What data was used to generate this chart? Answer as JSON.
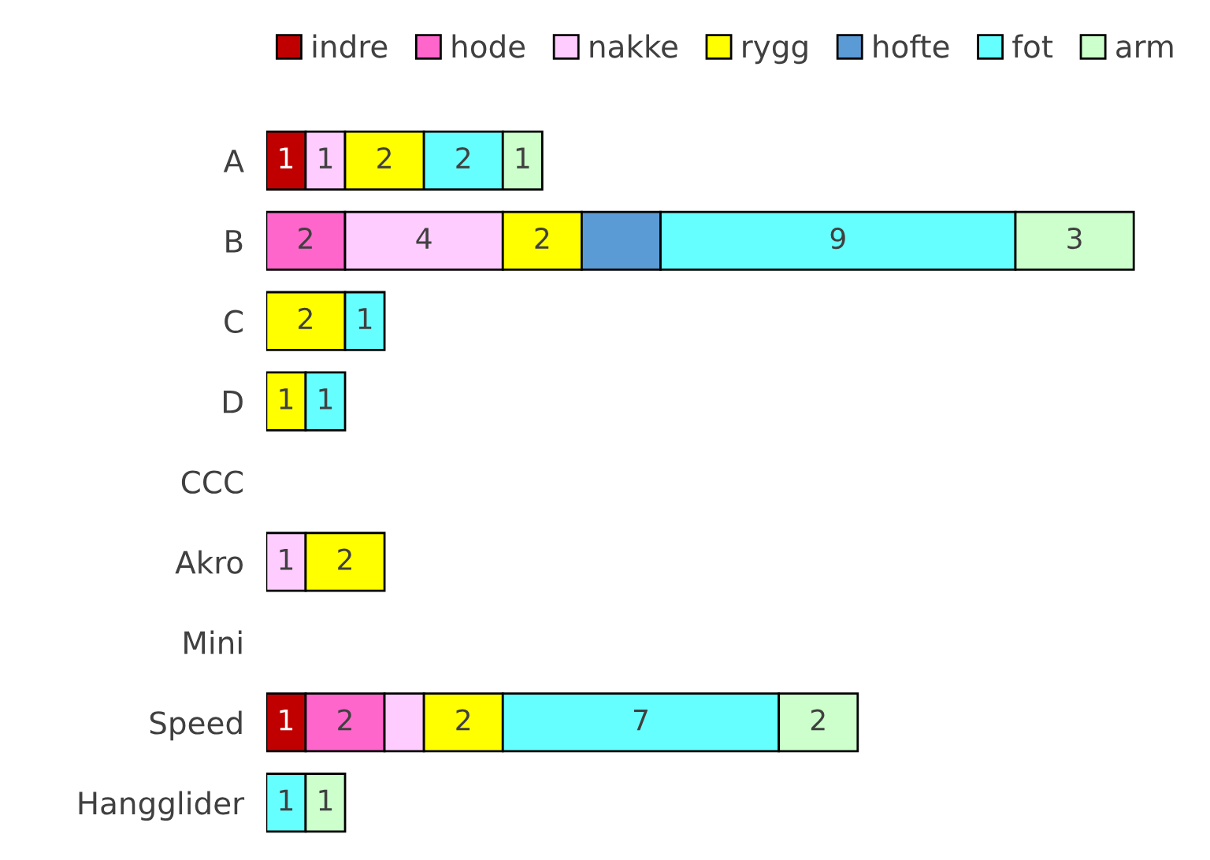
{
  "chart_data": {
    "type": "bar",
    "orientation": "horizontal",
    "stacked": true,
    "legend": "top",
    "grid": false,
    "categories": [
      "A",
      "B",
      "C",
      "D",
      "CCC",
      "Akro",
      "Mini",
      "Speed",
      "Hangglider"
    ],
    "series": [
      {
        "name": "indre",
        "color": "#c00000",
        "values": [
          1,
          null,
          null,
          null,
          null,
          null,
          null,
          1,
          null
        ],
        "value_labels": [
          "1",
          null,
          null,
          null,
          null,
          null,
          null,
          "1",
          null
        ]
      },
      {
        "name": "hode",
        "color": "#ff66cc",
        "values": [
          null,
          2,
          null,
          null,
          null,
          null,
          null,
          2,
          null
        ],
        "value_labels": [
          null,
          "2",
          null,
          null,
          null,
          null,
          null,
          "2",
          null
        ]
      },
      {
        "name": "nakke",
        "color": "#ffccff",
        "values": [
          1,
          4,
          null,
          null,
          null,
          1,
          null,
          1,
          null
        ],
        "value_labels": [
          "1",
          "4",
          null,
          null,
          null,
          "1",
          null,
          null,
          null
        ]
      },
      {
        "name": "rygg",
        "color": "#ffff00",
        "values": [
          2,
          2,
          2,
          1,
          null,
          2,
          null,
          2,
          null
        ],
        "value_labels": [
          "2",
          "2",
          "2",
          "1",
          null,
          "2",
          null,
          "2",
          null
        ]
      },
      {
        "name": "hofte",
        "color": "#5b9bd5",
        "values": [
          null,
          2,
          null,
          null,
          null,
          null,
          null,
          null,
          null
        ],
        "value_labels": [
          null,
          null,
          null,
          null,
          null,
          null,
          null,
          null,
          null
        ]
      },
      {
        "name": "fot",
        "color": "#66ffff",
        "values": [
          2,
          9,
          1,
          1,
          null,
          null,
          null,
          7,
          1
        ],
        "value_labels": [
          "2",
          "9",
          "1",
          "1",
          null,
          null,
          null,
          "7",
          "1"
        ]
      },
      {
        "name": "arm",
        "color": "#ccffcc",
        "values": [
          1,
          3,
          null,
          null,
          null,
          null,
          null,
          2,
          1
        ],
        "value_labels": [
          "1",
          "3",
          null,
          null,
          null,
          null,
          null,
          "2",
          "1"
        ]
      }
    ]
  }
}
